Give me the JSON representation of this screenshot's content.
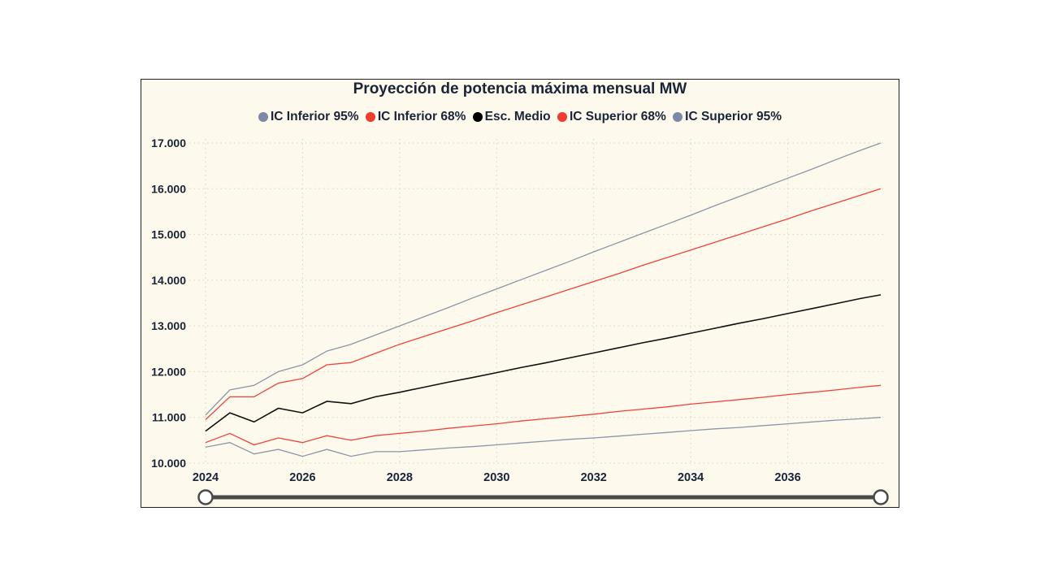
{
  "chart_data": {
    "type": "line",
    "title": "Proyección de potencia máxima mensual MW",
    "legend_position": "top",
    "grid": true,
    "ylim": [
      10000,
      17000
    ],
    "yticks": [
      "10.000",
      "11.000",
      "12.000",
      "13.000",
      "14.000",
      "15.000",
      "16.000",
      "17.000"
    ],
    "ytick_values": [
      10000,
      11000,
      12000,
      13000,
      14000,
      15000,
      16000,
      17000
    ],
    "xticks": [
      "2024",
      "2026",
      "2028",
      "2030",
      "2032",
      "2034",
      "2036"
    ],
    "xlim": [
      "2024-01",
      "2037-12"
    ],
    "x": [
      "2024-01",
      "2024-07",
      "2025-01",
      "2025-07",
      "2026-01",
      "2026-07",
      "2027-01",
      "2027-07",
      "2028-01",
      "2028-07",
      "2029-01",
      "2029-07",
      "2030-01",
      "2030-07",
      "2031-01",
      "2031-07",
      "2032-01",
      "2032-07",
      "2033-01",
      "2033-07",
      "2034-01",
      "2034-07",
      "2035-01",
      "2035-07",
      "2036-01",
      "2036-07",
      "2037-01",
      "2037-07",
      "2037-12"
    ],
    "series": [
      {
        "name": "IC Inferior 95%",
        "color": "#7a8aa6",
        "line_color": "#8c96a8",
        "values": [
          10350,
          10450,
          10200,
          10300,
          10150,
          10300,
          10150,
          10250,
          10250,
          10290,
          10330,
          10360,
          10400,
          10440,
          10480,
          10520,
          10550,
          10590,
          10630,
          10670,
          10710,
          10750,
          10780,
          10820,
          10860,
          10900,
          10940,
          10970,
          11000
        ]
      },
      {
        "name": "IC Inferior 68%",
        "color": "#f03c32",
        "line_color": "#f0443a",
        "values": [
          10450,
          10650,
          10400,
          10550,
          10450,
          10600,
          10500,
          10600,
          10650,
          10700,
          10760,
          10810,
          10860,
          10920,
          10970,
          11020,
          11070,
          11130,
          11180,
          11230,
          11290,
          11340,
          11390,
          11440,
          11500,
          11550,
          11600,
          11660,
          11700
        ]
      },
      {
        "name": "Esc. Medio",
        "color": "#000000",
        "line_color": "#111111",
        "values": [
          10700,
          11100,
          10900,
          11200,
          11100,
          11350,
          11300,
          11450,
          11550,
          11660,
          11770,
          11870,
          11980,
          12090,
          12190,
          12300,
          12410,
          12520,
          12630,
          12730,
          12840,
          12950,
          13060,
          13160,
          13270,
          13380,
          13490,
          13600,
          13680
        ]
      },
      {
        "name": "IC Superior 68%",
        "color": "#f03c32",
        "line_color": "#f0443a",
        "values": [
          10950,
          11450,
          11450,
          11750,
          11850,
          12150,
          12200,
          12400,
          12600,
          12770,
          12940,
          13110,
          13290,
          13460,
          13630,
          13800,
          13970,
          14140,
          14320,
          14490,
          14660,
          14830,
          15000,
          15170,
          15340,
          15520,
          15690,
          15860,
          16000
        ]
      },
      {
        "name": "IC Superior 95%",
        "color": "#7a8aa6",
        "line_color": "#8c96a8",
        "values": [
          11050,
          11600,
          11700,
          12000,
          12150,
          12450,
          12600,
          12800,
          13000,
          13200,
          13400,
          13610,
          13810,
          14010,
          14210,
          14410,
          14620,
          14820,
          15020,
          15220,
          15420,
          15630,
          15830,
          16030,
          16230,
          16430,
          16640,
          16840,
          17000
        ]
      }
    ],
    "range_slider": {
      "start": "2024-01",
      "end": "2037-12"
    }
  }
}
